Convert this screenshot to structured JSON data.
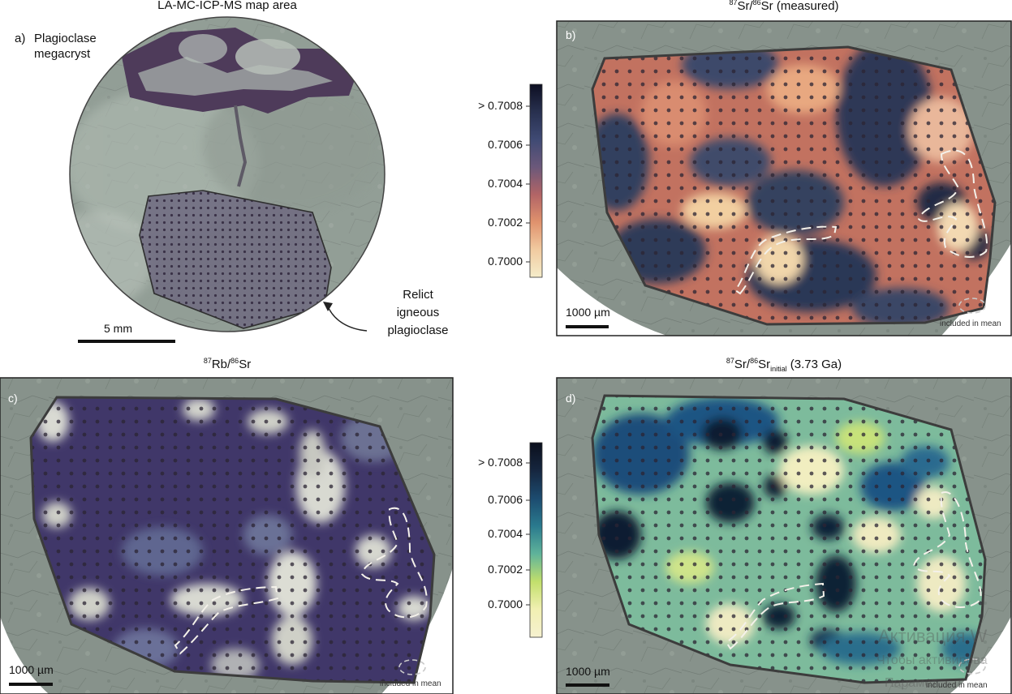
{
  "panel_a": {
    "title": "LA-MC-ICP-MS map area",
    "label": "a)",
    "name_line1": "Plagioclase",
    "name_line2": "megacryst",
    "scale": "5 mm",
    "annot_line1": "Relict",
    "annot_line2": "igneous",
    "annot_line3": "plagioclase"
  },
  "panel_b": {
    "label": "b)",
    "title_iso_a": "87",
    "title_el_a": "Sr/",
    "title_iso_b": "86",
    "title_el_b": "Sr (measured)",
    "scale": "1000 µm",
    "legend": "included in mean"
  },
  "panel_c": {
    "label": "c)",
    "title_iso_a": "87",
    "title_el_a": "Rb/",
    "title_iso_b": "86",
    "title_el_b": "Sr",
    "scale": "1000 µm",
    "legend": "included in mean"
  },
  "panel_d": {
    "label": "d)",
    "title_iso_a": "87",
    "title_el_a": "Sr/",
    "title_iso_b": "86",
    "title_el_b": "Sr",
    "title_sub": "initial",
    "title_tail": " (3.73 Ga)",
    "scale": "1000 µm",
    "legend": "included in mean"
  },
  "colorbar_top": {
    "ticks": [
      "> 0.7008",
      "0.7006",
      "0.7004",
      "0.7002",
      "0.7000"
    ],
    "colors": [
      "#0d0f22",
      "#28304f",
      "#3f4a74",
      "#6b587a",
      "#b26466",
      "#e0926d",
      "#f1caa0",
      "#f5ecca"
    ]
  },
  "colorbar_bottom": {
    "ticks": [
      "> 0.7008",
      "0.7006",
      "0.7004",
      "0.7002",
      "0.7000"
    ],
    "colors": [
      "#0b0f1c",
      "#16263f",
      "#1c4b6f",
      "#2a7a8e",
      "#5fb39a",
      "#c2df6c",
      "#f1f0b2",
      "#f6f1d0"
    ]
  },
  "watermark": {
    "line1": "Активация W",
    "line2": "Чтобы активирова",
    "line3": "Парамет"
  },
  "colors": {
    "rock_grey": "#7e8a84",
    "rock_light": "#a7b2aa",
    "outline": "#3c3c3c",
    "sr_purple": "#3f3866"
  }
}
